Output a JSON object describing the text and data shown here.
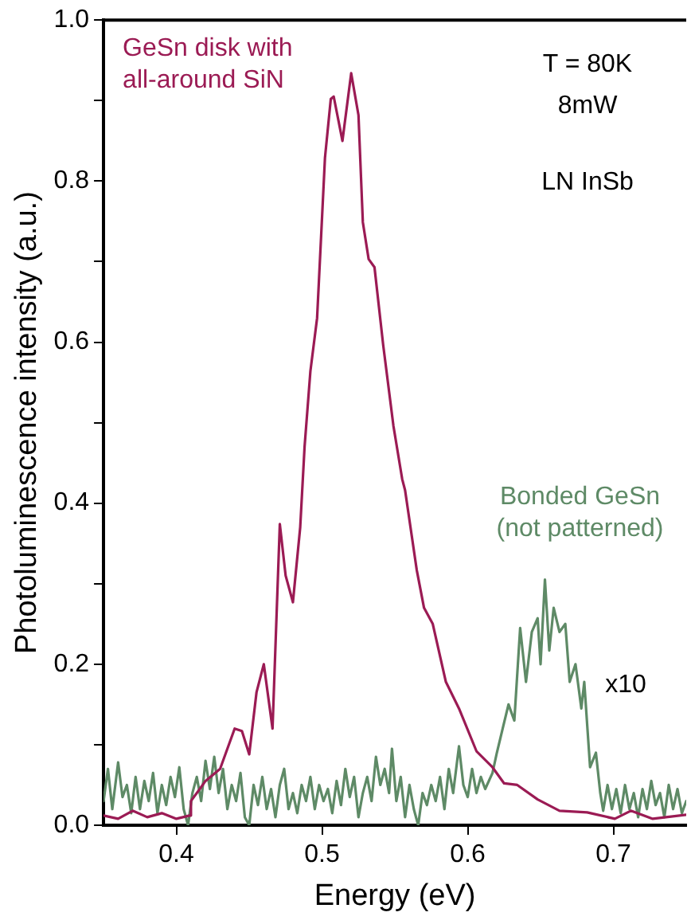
{
  "chart_data": {
    "type": "line",
    "xlabel": "Energy (eV)",
    "ylabel": "Photoluminescence intensity (a.u.)",
    "xlim": [
      0.35,
      0.75
    ],
    "xticks": [
      0.4,
      0.5,
      0.6,
      0.7
    ],
    "ylim": [
      0,
      1
    ],
    "yticks": [
      {
        "value": 0,
        "label": "0.0"
      },
      {
        "value": 0.1,
        "label": null
      },
      0.2,
      {
        "value": 0.3,
        "label": null
      },
      0.4,
      {
        "value": 0.5,
        "label": null
      },
      0.6,
      {
        "value": 0.7,
        "label": null
      },
      0.8,
      {
        "value": 0.9,
        "label": null
      },
      {
        "value": 1,
        "label": "1.0"
      }
    ],
    "grid": false,
    "legend": false,
    "marker": "none",
    "line_style": "solid",
    "annotations": [
      "T = 80K",
      "8mW",
      "LN InSb",
      "x10"
    ],
    "series": [
      {
        "name": "GeSn disk with\nall-around SiN",
        "color": "#9b1b54",
        "x": [
          0.35,
          0.36,
          0.37,
          0.38,
          0.39,
          0.4,
          0.409,
          0.41,
          0.42,
          0.43,
          0.44,
          0.445,
          0.45,
          0.455,
          0.46,
          0.466,
          0.471,
          0.475,
          0.48,
          0.485,
          0.488,
          0.492,
          0.4966,
          0.502,
          0.506,
          0.508,
          0.514,
          0.52,
          0.525,
          0.528,
          0.532,
          0.536,
          0.542,
          0.549,
          0.555,
          0.557,
          0.565,
          0.57,
          0.576,
          0.585,
          0.594,
          0.606,
          0.617,
          0.625,
          0.634,
          0.648,
          0.663,
          0.682,
          0.701,
          0.712,
          0.727,
          0.75
        ],
        "values": [
          0.012,
          0.008,
          0.018,
          0.01,
          0.015,
          0.008,
          0.012,
          0.03,
          0.055,
          0.07,
          0.12,
          0.117,
          0.088,
          0.165,
          0.2,
          0.12,
          0.374,
          0.31,
          0.277,
          0.37,
          0.47,
          0.564,
          0.63,
          0.829,
          0.902,
          0.905,
          0.85,
          0.934,
          0.882,
          0.749,
          0.703,
          0.693,
          0.596,
          0.496,
          0.43,
          0.416,
          0.317,
          0.27,
          0.25,
          0.178,
          0.145,
          0.092,
          0.072,
          0.052,
          0.05,
          0.032,
          0.018,
          0.016,
          0.008,
          0.018,
          0.008,
          0.013
        ]
      },
      {
        "name": "Bonded GeSn\n(not patterned)",
        "color": "#5e8a66",
        "x": [
          0.35,
          0.353,
          0.356,
          0.36,
          0.363,
          0.366,
          0.369,
          0.372,
          0.375,
          0.378,
          0.381,
          0.384,
          0.387,
          0.39,
          0.393,
          0.396,
          0.399,
          0.402,
          0.405,
          0.408,
          0.411,
          0.414,
          0.417,
          0.42,
          0.423,
          0.426,
          0.429,
          0.432,
          0.435,
          0.438,
          0.441,
          0.444,
          0.447,
          0.45,
          0.453,
          0.456,
          0.459,
          0.462,
          0.465,
          0.468,
          0.471,
          0.474,
          0.477,
          0.48,
          0.483,
          0.486,
          0.489,
          0.492,
          0.495,
          0.498,
          0.501,
          0.504,
          0.507,
          0.51,
          0.513,
          0.516,
          0.519,
          0.522,
          0.525,
          0.528,
          0.531,
          0.534,
          0.537,
          0.54,
          0.543,
          0.546,
          0.548,
          0.551,
          0.554,
          0.557,
          0.56,
          0.563,
          0.566,
          0.569,
          0.572,
          0.575,
          0.578,
          0.581,
          0.584,
          0.587,
          0.59,
          0.594,
          0.597,
          0.6,
          0.603,
          0.606,
          0.609,
          0.612,
          0.617,
          0.62,
          0.624,
          0.628,
          0.632,
          0.636,
          0.64,
          0.644,
          0.648,
          0.65,
          0.653,
          0.656,
          0.659,
          0.663,
          0.667,
          0.67,
          0.674,
          0.678,
          0.68,
          0.684,
          0.688,
          0.691,
          0.693,
          0.696,
          0.699,
          0.702,
          0.705,
          0.708,
          0.711,
          0.714,
          0.717,
          0.72,
          0.723,
          0.726,
          0.729,
          0.732,
          0.735,
          0.738,
          0.741,
          0.744,
          0.747,
          0.75
        ],
        "values": [
          0.03,
          0.07,
          0.02,
          0.078,
          0.035,
          0.05,
          0.015,
          0.06,
          0.02,
          0.055,
          0.03,
          0.065,
          0.015,
          0.05,
          0.025,
          0.06,
          0.035,
          0.072,
          0.02,
          0.0,
          0.04,
          0.06,
          0.03,
          0.08,
          0.045,
          0.085,
          0.04,
          0.07,
          0.02,
          0.05,
          0.03,
          0.065,
          0.01,
          0.0,
          0.05,
          0.025,
          0.06,
          0.02,
          0.045,
          0.01,
          0.05,
          0.07,
          0.02,
          0.04,
          0.015,
          0.05,
          0.03,
          0.06,
          0.02,
          0.05,
          0.03,
          0.045,
          0.015,
          0.055,
          0.025,
          0.07,
          0.035,
          0.06,
          0.01,
          0.04,
          0.06,
          0.03,
          0.085,
          0.05,
          0.07,
          0.04,
          0.095,
          0.03,
          0.06,
          0.01,
          0.05,
          0.02,
          0.0,
          0.04,
          0.025,
          0.05,
          0.03,
          0.06,
          0.02,
          0.07,
          0.04,
          0.098,
          0.05,
          0.035,
          0.07,
          0.04,
          0.06,
          0.045,
          0.065,
          0.09,
          0.12,
          0.15,
          0.13,
          0.245,
          0.178,
          0.24,
          0.257,
          0.2,
          0.305,
          0.217,
          0.27,
          0.24,
          0.25,
          0.178,
          0.2,
          0.145,
          0.178,
          0.072,
          0.09,
          0.04,
          0.018,
          0.05,
          0.02,
          0.045,
          0.015,
          0.05,
          0.02,
          0.04,
          0.01,
          0.045,
          0.02,
          0.055,
          0.025,
          0.04,
          0.01,
          0.05,
          0.02,
          0.045,
          0.015,
          0.03
        ]
      }
    ]
  }
}
